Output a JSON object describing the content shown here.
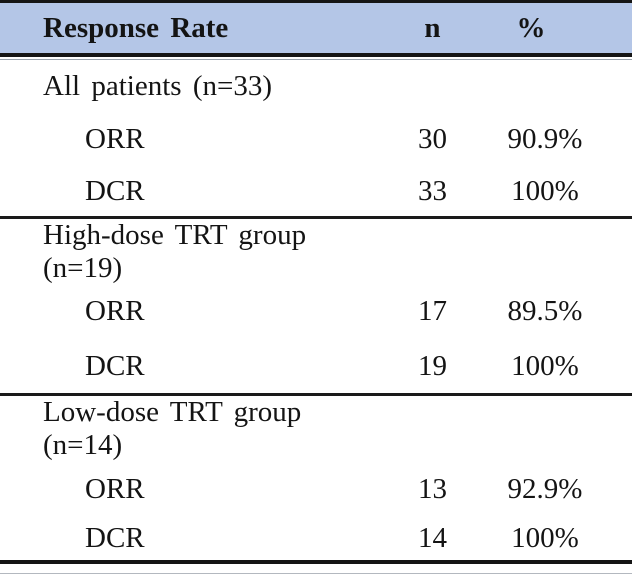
{
  "table": {
    "header": {
      "label": "Response Rate",
      "n": "n",
      "pct": "%"
    },
    "sections": [
      {
        "label": "All patients (n=33)",
        "rows": [
          {
            "name": "ORR",
            "n": "30",
            "pct": "90.9%"
          },
          {
            "name": "DCR",
            "n": "33",
            "pct": "100%"
          }
        ]
      },
      {
        "label": "High-dose TRT group (n=19)",
        "rows": [
          {
            "name": "ORR",
            "n": "17",
            "pct": "89.5%"
          },
          {
            "name": "DCR",
            "n": "19",
            "pct": "100%"
          }
        ]
      },
      {
        "label": "Low-dose TRT group (n=14)",
        "rows": [
          {
            "name": "ORR",
            "n": "13",
            "pct": "92.9%"
          },
          {
            "name": "DCR",
            "n": "14",
            "pct": "100%"
          }
        ]
      }
    ]
  },
  "colors": {
    "header_bg": "#b4c6e7",
    "rule_black": "#151515",
    "rule_gray": "#9aa3ad",
    "text": "#141414"
  },
  "chart_data": {
    "type": "table",
    "title": "Response Rate",
    "columns": [
      "Response Rate",
      "n",
      "%"
    ],
    "rows": [
      [
        "All patients (n=33)",
        "",
        ""
      ],
      [
        "ORR",
        30,
        "90.9%"
      ],
      [
        "DCR",
        33,
        "100%"
      ],
      [
        "High-dose TRT group (n=19)",
        "",
        ""
      ],
      [
        "ORR",
        17,
        "89.5%"
      ],
      [
        "DCR",
        19,
        "100%"
      ],
      [
        "Low-dose TRT group (n=14)",
        "",
        ""
      ],
      [
        "ORR",
        13,
        "92.9%"
      ],
      [
        "DCR",
        14,
        "100%"
      ]
    ]
  }
}
